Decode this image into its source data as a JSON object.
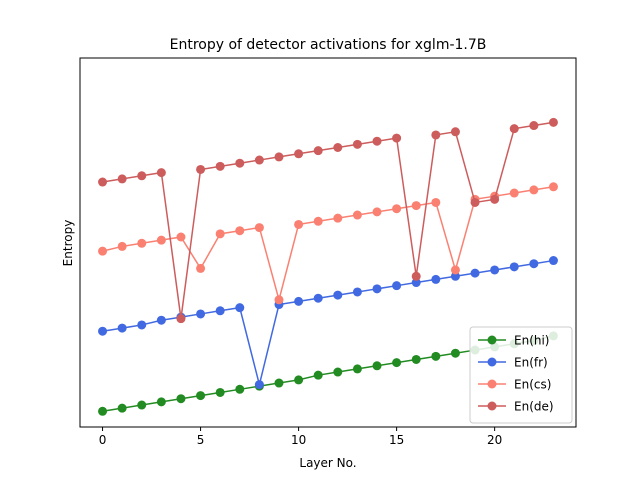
{
  "chart_data": {
    "type": "line",
    "title": "Entropy of detector activations for xglm-1.7B",
    "xlabel": "Layer No.",
    "ylabel": "Entropy",
    "xlim": [
      -1.15,
      24.15
    ],
    "ylim": [
      -0.5,
      23.0
    ],
    "xticks": [
      0,
      5,
      10,
      15,
      20
    ],
    "yticks_shown": false,
    "grid": false,
    "legend_position": "lower right",
    "x": [
      0,
      1,
      2,
      3,
      4,
      5,
      6,
      7,
      8,
      9,
      10,
      11,
      12,
      13,
      14,
      15,
      16,
      17,
      18,
      19,
      20,
      21,
      22,
      23
    ],
    "series": [
      {
        "name": "En(hi)",
        "color": "#228b22",
        "values": [
          0.5,
          0.7,
          0.9,
          1.1,
          1.3,
          1.5,
          1.7,
          1.9,
          2.1,
          2.3,
          2.5,
          2.8,
          3.0,
          3.2,
          3.4,
          3.6,
          3.8,
          4.0,
          4.2,
          4.4,
          4.6,
          4.8,
          5.0,
          5.3
        ]
      },
      {
        "name": "En(fr)",
        "color": "#4169e1",
        "values": [
          5.6,
          5.8,
          6.0,
          6.3,
          6.5,
          6.7,
          6.9,
          7.1,
          2.2,
          7.3,
          7.5,
          7.7,
          7.9,
          8.1,
          8.3,
          8.5,
          8.7,
          8.9,
          9.1,
          9.3,
          9.5,
          9.7,
          9.9,
          10.1
        ]
      },
      {
        "name": "En(cs)",
        "color": "#fa8072",
        "values": [
          10.7,
          11.0,
          11.2,
          11.4,
          11.6,
          9.6,
          11.8,
          12.0,
          12.2,
          7.6,
          12.4,
          12.6,
          12.8,
          13.0,
          13.2,
          13.4,
          13.6,
          13.8,
          9.5,
          14.0,
          14.2,
          14.4,
          14.6,
          14.8
        ]
      },
      {
        "name": "En(de)",
        "color": "#cd5c5c",
        "values": [
          15.1,
          15.3,
          15.5,
          15.7,
          6.4,
          15.9,
          16.1,
          16.3,
          16.5,
          16.7,
          16.9,
          17.1,
          17.3,
          17.5,
          17.7,
          17.9,
          9.1,
          18.1,
          18.3,
          13.8,
          14.0,
          18.5,
          18.7,
          18.9
        ]
      }
    ]
  }
}
